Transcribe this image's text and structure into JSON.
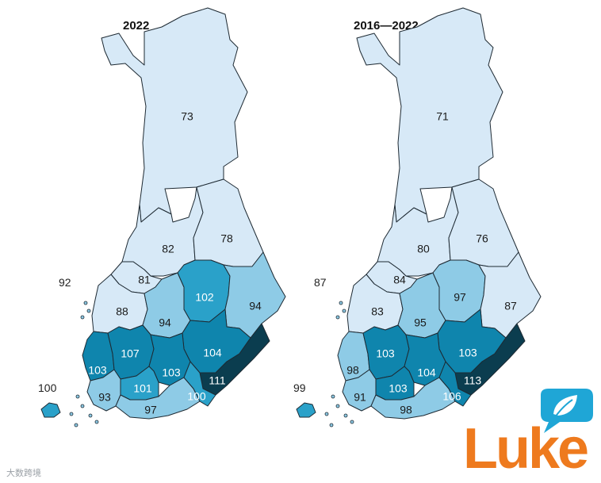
{
  "colors": {
    "class_1": "#d7e9f7",
    "class_2": "#8ecbe6",
    "class_3": "#2aa1c9",
    "class_4": "#0f85ad",
    "class_5": "#0b3d4f",
    "border": "#1e2a33",
    "logo": "#ee7a1e",
    "logo_bubble": "#1fa6d6"
  },
  "maps": [
    {
      "title": "2022",
      "islands_value": "100",
      "coastal_value": "92",
      "regions": {
        "lapland": "73",
        "north_ostrobothnia": "82",
        "kainuu": "78",
        "central_ostrobothnia": "81",
        "south_ostrobothnia": "88",
        "central_finland": "94",
        "north_savo": "102",
        "north_karelia": "94",
        "ostrobothnia_sw": "103",
        "satakunta": "107",
        "pirkanmaa": "103",
        "south_savo": "104",
        "south_karelia": "111",
        "southwest_finland": "93",
        "tavastia_proper": "101",
        "uusimaa": "97",
        "kymenlaakso": "100"
      }
    },
    {
      "title": "2016—2022",
      "islands_value": "99",
      "coastal_value": "87",
      "regions": {
        "lapland": "71",
        "north_ostrobothnia": "80",
        "kainuu": "76",
        "central_ostrobothnia": "84",
        "south_ostrobothnia": "83",
        "central_finland": "95",
        "north_savo": "97",
        "north_karelia": "87",
        "ostrobothnia_sw": "98",
        "satakunta": "103",
        "pirkanmaa": "104",
        "south_savo": "103",
        "south_karelia": "113",
        "southwest_finland": "91",
        "tavastia_proper": "103",
        "uusimaa": "98",
        "kymenlaakso": "106"
      }
    }
  ],
  "logo": {
    "text": "Luke"
  },
  "watermark": "大数跨境"
}
